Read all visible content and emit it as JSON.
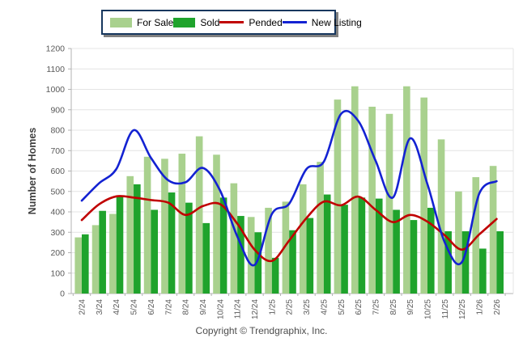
{
  "legend": {
    "items": [
      {
        "label": "For Sale",
        "swatch": "box",
        "color": "#a9d18e"
      },
      {
        "label": "Sold",
        "swatch": "box",
        "color": "#1fa32c"
      },
      {
        "label": "Pended",
        "swatch": "line",
        "color": "#c00000"
      },
      {
        "label": "New Listing",
        "swatch": "line",
        "color": "#1322d2"
      }
    ]
  },
  "footer": {
    "text": "Copyright © Trendgraphix, Inc."
  },
  "chart_data": {
    "type": "bar+line",
    "title": "",
    "xlabel": "",
    "ylabel": "Number of Homes",
    "ylim": [
      0,
      1200
    ],
    "ytick_step": 100,
    "grid": true,
    "legend_position": "top",
    "categories": [
      "2/24",
      "3/24",
      "4/24",
      "5/24",
      "6/24",
      "7/24",
      "8/24",
      "9/24",
      "10/24",
      "11/24",
      "12/24",
      "1/25",
      "2/25",
      "3/25",
      "4/25",
      "5/25",
      "6/25",
      "7/25",
      "8/25",
      "9/25",
      "10/25",
      "11/25",
      "12/25",
      "1/26",
      "2/26"
    ],
    "series": [
      {
        "name": "For Sale",
        "type": "bar",
        "color": "#a9d18e",
        "values": [
          275,
          335,
          390,
          575,
          670,
          660,
          685,
          770,
          680,
          540,
          375,
          420,
          450,
          535,
          645,
          950,
          1015,
          915,
          880,
          1015,
          960,
          755,
          500,
          570,
          625
        ]
      },
      {
        "name": "Sold",
        "type": "bar",
        "color": "#1fa32c",
        "values": [
          290,
          405,
          475,
          535,
          410,
          495,
          445,
          345,
          470,
          380,
          300,
          175,
          310,
          370,
          485,
          435,
          470,
          465,
          410,
          360,
          420,
          305,
          305,
          220,
          305
        ]
      },
      {
        "name": "Pended",
        "type": "line",
        "color": "#c00000",
        "values": [
          360,
          437,
          476,
          470,
          458,
          445,
          385,
          428,
          438,
          342,
          215,
          160,
          260,
          370,
          450,
          432,
          475,
          410,
          350,
          385,
          352,
          285,
          215,
          290,
          365
        ]
      },
      {
        "name": "New Listing",
        "type": "line",
        "color": "#1322d2",
        "values": [
          455,
          540,
          610,
          800,
          665,
          555,
          545,
          615,
          505,
          280,
          140,
          390,
          440,
          610,
          645,
          880,
          845,
          650,
          470,
          760,
          535,
          250,
          155,
          490,
          550
        ]
      }
    ],
    "axis_text_color": "#595959",
    "ylabel_color": "#3f3f3f",
    "gridline_color": "#e4e4e4",
    "axis_line_color": "#b3b3b3"
  }
}
